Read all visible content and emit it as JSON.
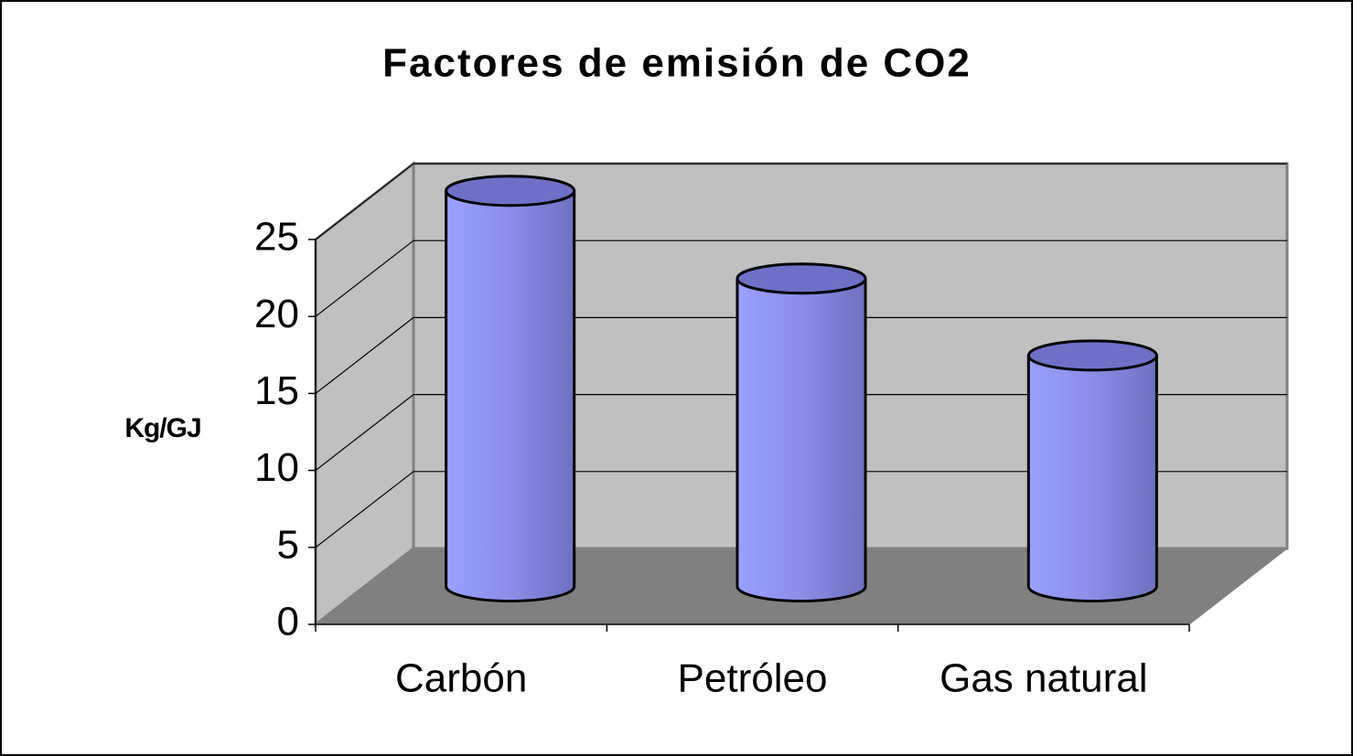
{
  "chart_data": {
    "type": "bar",
    "title": "Factores de emisión de CO2",
    "y_label": "Kg/GJ",
    "categories": [
      "Carbón",
      "Petróleo",
      "Gas natural"
    ],
    "values": [
      25.7,
      20,
      15
    ],
    "color": "#9999ff",
    "ylim": [
      0,
      25
    ],
    "yticks": [
      0,
      5,
      10,
      15,
      20,
      25
    ],
    "grid": true
  }
}
